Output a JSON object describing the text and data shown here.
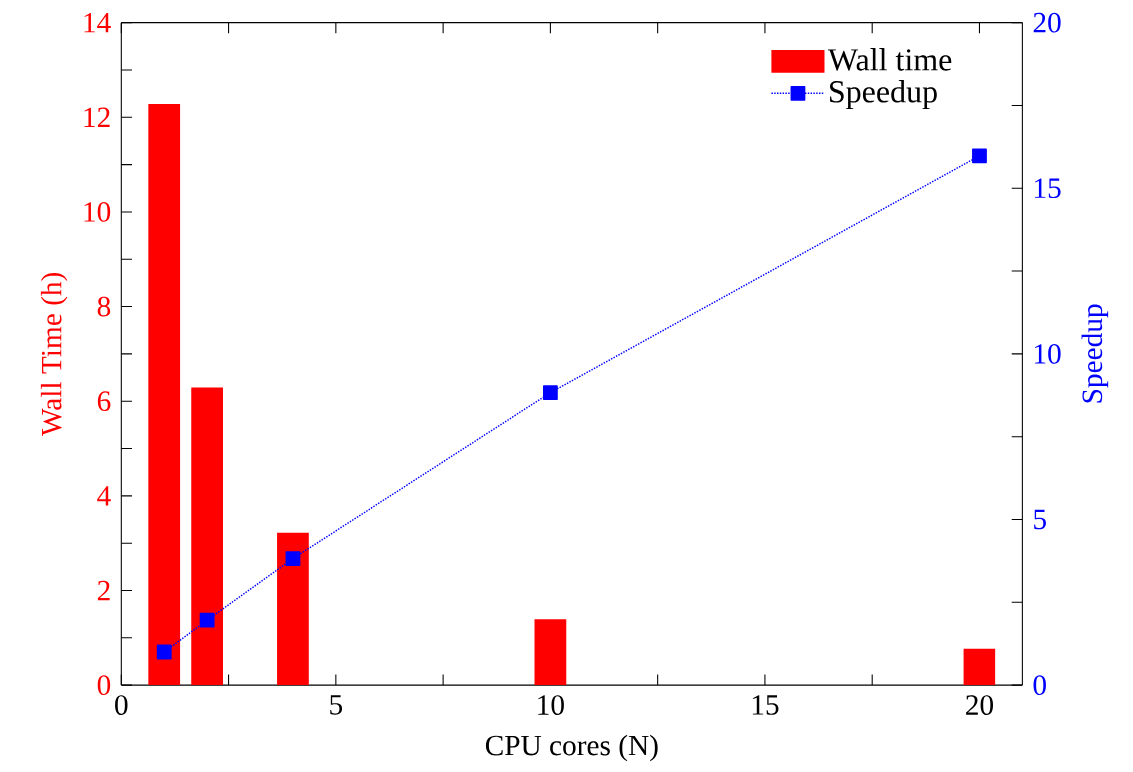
{
  "chart_data": {
    "type": "bar",
    "xlabel": "CPU cores (N)",
    "ylabel": "Wall Time (h)",
    "y2label": "Speedup",
    "xlim": [
      0,
      21
    ],
    "xticks": [
      0,
      {
        "value": 2.5,
        "label": null
      },
      5,
      {
        "value": 7.5,
        "label": null
      },
      10,
      {
        "value": 12.5,
        "label": null
      },
      15,
      {
        "value": 17.5,
        "label": null
      },
      20
    ],
    "ylim": [
      0,
      14
    ],
    "yticks": [
      0,
      {
        "value": 1,
        "label": null
      },
      2,
      {
        "value": 3,
        "label": null
      },
      4,
      {
        "value": 5,
        "label": null
      },
      6,
      {
        "value": 7,
        "label": null
      },
      8,
      {
        "value": 9,
        "label": null
      },
      10,
      {
        "value": 11,
        "label": null
      },
      12,
      {
        "value": 13,
        "label": null
      },
      14
    ],
    "y2lim": [
      0,
      20
    ],
    "y2ticks": [
      0,
      {
        "value": 2.5,
        "label": null
      },
      5,
      {
        "value": 7.5,
        "label": null
      },
      10,
      {
        "value": 12.5,
        "label": null
      },
      15,
      {
        "value": 17.5,
        "label": null
      },
      20
    ],
    "x": [
      1,
      2,
      4,
      10,
      20
    ],
    "series": [
      {
        "name": "Wall time",
        "color": "#ff0000",
        "values": [
          12.28,
          6.29,
          3.22,
          1.39,
          0.77
        ]
      },
      {
        "name": "Speedup",
        "type": "line",
        "axis": "y2",
        "color": "#0000ff",
        "marker": "square",
        "line_style": "dotted",
        "values": [
          1.0,
          1.96,
          3.82,
          8.83,
          15.98
        ]
      }
    ],
    "legend": "top right"
  }
}
